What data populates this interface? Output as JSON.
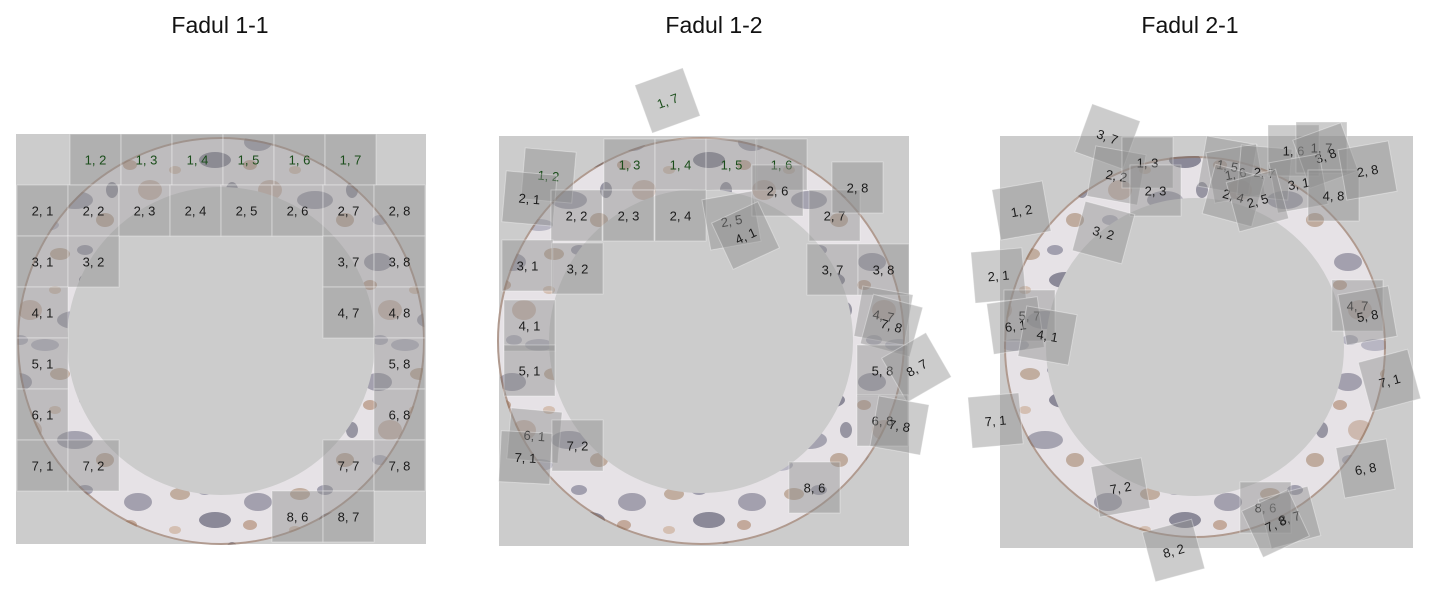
{
  "panels": [
    {
      "title": "Fadul 1-1",
      "tiles": [
        {
          "label": "1, 2"
        },
        {
          "label": "1, 3"
        },
        {
          "label": "1, 4"
        },
        {
          "label": "1, 5"
        },
        {
          "label": "1, 6"
        },
        {
          "label": "1, 7"
        },
        {
          "label": "2, 1"
        },
        {
          "label": "2, 2"
        },
        {
          "label": "2, 3"
        },
        {
          "label": "2, 4"
        },
        {
          "label": "2, 5"
        },
        {
          "label": "2, 6"
        },
        {
          "label": "2, 7"
        },
        {
          "label": "2, 8"
        },
        {
          "label": "3, 1"
        },
        {
          "label": "3, 2"
        },
        {
          "label": "3, 7"
        },
        {
          "label": "3, 8"
        },
        {
          "label": "4, 1"
        },
        {
          "label": "4, 7"
        },
        {
          "label": "4, 8"
        },
        {
          "label": "5, 1"
        },
        {
          "label": "5, 8"
        },
        {
          "label": "6, 1"
        },
        {
          "label": "6, 8"
        },
        {
          "label": "7, 1"
        },
        {
          "label": "7, 2"
        },
        {
          "label": "7, 7"
        },
        {
          "label": "7, 8"
        },
        {
          "label": "8, 6"
        },
        {
          "label": "8, 7"
        }
      ]
    },
    {
      "title": "Fadul 1-2",
      "tiles": [
        {
          "label": "1, 7"
        },
        {
          "label": "1, 2"
        },
        {
          "label": "1, 3"
        },
        {
          "label": "1, 4"
        },
        {
          "label": "1, 5"
        },
        {
          "label": "1, 6"
        },
        {
          "label": "2, 1"
        },
        {
          "label": "2, 2"
        },
        {
          "label": "2, 3"
        },
        {
          "label": "2, 4"
        },
        {
          "label": "2, 5"
        },
        {
          "label": "2, 6"
        },
        {
          "label": "2, 7"
        },
        {
          "label": "2, 8"
        },
        {
          "label": "4, 1"
        },
        {
          "label": "3, 1"
        },
        {
          "label": "3, 2"
        },
        {
          "label": "3, 7"
        },
        {
          "label": "3, 8"
        },
        {
          "label": "4, 1"
        },
        {
          "label": "4, 7"
        },
        {
          "label": "7, 8"
        },
        {
          "label": "5, 1"
        },
        {
          "label": "5, 8"
        },
        {
          "label": "8, 7"
        },
        {
          "label": "6, 1"
        },
        {
          "label": "7, 1"
        },
        {
          "label": "7, 2"
        },
        {
          "label": "6, 8"
        },
        {
          "label": "7, 8"
        },
        {
          "label": "8, 6"
        }
      ]
    },
    {
      "title": "Fadul 2-1",
      "tiles": [
        {
          "label": "3, 7"
        },
        {
          "label": "2, 2"
        },
        {
          "label": "1, 3"
        },
        {
          "label": "2, 3"
        },
        {
          "label": "3, 2"
        },
        {
          "label": "1, 5"
        },
        {
          "label": "1, 6"
        },
        {
          "label": "2, 7"
        },
        {
          "label": "1, 6"
        },
        {
          "label": "1, 7"
        },
        {
          "label": "3, 8"
        },
        {
          "label": "3, 1"
        },
        {
          "label": "2, 4"
        },
        {
          "label": "2, 5"
        },
        {
          "label": "4, 8"
        },
        {
          "label": "2, 8"
        },
        {
          "label": "1, 2"
        },
        {
          "label": "2, 1"
        },
        {
          "label": "5, 7"
        },
        {
          "label": "6, 1"
        },
        {
          "label": "4, 1"
        },
        {
          "label": "4, 7"
        },
        {
          "label": "5, 8"
        },
        {
          "label": "7, 1"
        },
        {
          "label": "7, 1"
        },
        {
          "label": "6, 8"
        },
        {
          "label": "7, 2"
        },
        {
          "label": "8, 6"
        },
        {
          "label": "8, 7"
        },
        {
          "label": "7, 8"
        },
        {
          "label": "8, 2"
        }
      ]
    }
  ]
}
